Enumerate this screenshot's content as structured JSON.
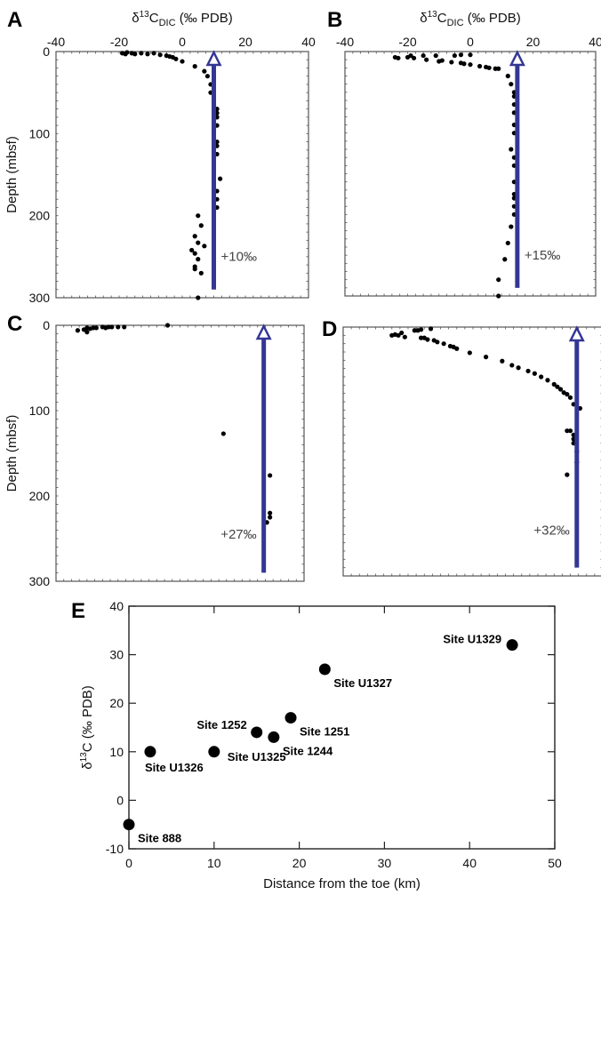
{
  "colors": {
    "arrow": "#343694",
    "points": "#000000",
    "frame": "#555555",
    "frame_e": "#222222"
  },
  "chart_data": [
    {
      "id": "A",
      "type": "scatter",
      "panel_label": "A",
      "title": "δ13C_DIC (‰ PDB)",
      "title_parts": {
        "prefix": "δ",
        "sup": "13",
        "main": "C",
        "sub": "DIC",
        "suffix": " (‰ PDB)"
      },
      "xlabel": "δ13C_DIC (‰ PDB)",
      "ylabel": "Depth (mbsf)",
      "xlim": [
        -40,
        40
      ],
      "ylim": [
        0,
        300
      ],
      "y_inverted": true,
      "x_ticks": [
        -40,
        -20,
        0,
        20,
        40
      ],
      "y_ticks": [
        0,
        100,
        200,
        300
      ],
      "arrow": {
        "x": 10,
        "depth_from": 290,
        "depth_to": 0,
        "label": "+10‰"
      },
      "points": [
        [
          -19,
          2
        ],
        [
          -18,
          3
        ],
        [
          -17.5,
          1
        ],
        [
          -16,
          2
        ],
        [
          -15,
          3
        ],
        [
          -13,
          2
        ],
        [
          -11,
          3
        ],
        [
          -9,
          2
        ],
        [
          -7,
          4
        ],
        [
          -5,
          5
        ],
        [
          -4,
          6
        ],
        [
          -3,
          7
        ],
        [
          -2,
          9
        ],
        [
          0,
          12
        ],
        [
          4,
          18
        ],
        [
          7,
          24
        ],
        [
          8,
          30
        ],
        [
          9,
          40
        ],
        [
          9,
          50
        ],
        [
          10,
          60
        ],
        [
          10,
          65
        ],
        [
          11,
          70
        ],
        [
          11,
          75
        ],
        [
          11,
          80
        ],
        [
          10,
          85
        ],
        [
          11,
          90
        ],
        [
          10,
          95
        ],
        [
          10,
          105
        ],
        [
          11,
          110
        ],
        [
          11,
          115
        ],
        [
          10,
          120
        ],
        [
          11,
          125
        ],
        [
          10,
          130
        ],
        [
          12,
          155
        ],
        [
          11,
          170
        ],
        [
          11,
          180
        ],
        [
          11,
          190
        ],
        [
          10,
          195
        ],
        [
          5,
          200
        ],
        [
          6,
          212
        ],
        [
          4,
          225
        ],
        [
          5,
          233
        ],
        [
          7,
          237
        ],
        [
          3,
          242
        ],
        [
          4,
          246
        ],
        [
          5,
          253
        ],
        [
          4,
          262
        ],
        [
          4,
          265
        ],
        [
          6,
          270
        ],
        [
          5,
          300
        ]
      ]
    },
    {
      "id": "B",
      "type": "scatter",
      "panel_label": "B",
      "title": "δ13C_DIC (‰ PDB)",
      "title_parts": {
        "prefix": "δ",
        "sup": "13",
        "main": "C",
        "sub": "DIC",
        "suffix": " (‰ PDB)"
      },
      "xlabel": "δ13C_DIC (‰ PDB)",
      "ylabel": "",
      "xlim": [
        -40,
        40
      ],
      "ylim": [
        0,
        300
      ],
      "y_inverted": true,
      "x_ticks": [
        -40,
        -20,
        0,
        20,
        40
      ],
      "y_ticks": [],
      "arrow": {
        "x": 15,
        "depth_from": 290,
        "depth_to": 0,
        "label": "+15‰"
      },
      "points": [
        [
          -24,
          7
        ],
        [
          -23,
          8
        ],
        [
          -20,
          7
        ],
        [
          -19,
          5
        ],
        [
          -18,
          8
        ],
        [
          -15,
          5
        ],
        [
          -14,
          10
        ],
        [
          -11,
          5
        ],
        [
          -10,
          12
        ],
        [
          -9,
          11
        ],
        [
          -6,
          13
        ],
        [
          -5,
          5
        ],
        [
          -3,
          4
        ],
        [
          -3,
          14
        ],
        [
          -2,
          15
        ],
        [
          0,
          4
        ],
        [
          0,
          16
        ],
        [
          3,
          18
        ],
        [
          5,
          19
        ],
        [
          6,
          20
        ],
        [
          8,
          21
        ],
        [
          9,
          21
        ],
        [
          12,
          30
        ],
        [
          13,
          40
        ],
        [
          14,
          50
        ],
        [
          14,
          55
        ],
        [
          14,
          65
        ],
        [
          14,
          75
        ],
        [
          14,
          90
        ],
        [
          14,
          100
        ],
        [
          13,
          120
        ],
        [
          14,
          130
        ],
        [
          14,
          140
        ],
        [
          14,
          160
        ],
        [
          14,
          175
        ],
        [
          14,
          180
        ],
        [
          14,
          190
        ],
        [
          14,
          200
        ],
        [
          13,
          215
        ],
        [
          12,
          235
        ],
        [
          11,
          255
        ],
        [
          9,
          280
        ],
        [
          9,
          300
        ]
      ]
    },
    {
      "id": "C",
      "type": "scatter",
      "panel_label": "C",
      "title": "",
      "xlabel": "",
      "ylabel": "Depth (mbsf)",
      "xlim": [
        -40,
        40
      ],
      "ylim": [
        0,
        300
      ],
      "y_inverted": true,
      "x_ticks": [],
      "y_ticks": [
        0,
        100,
        200,
        300
      ],
      "arrow": {
        "x": 27,
        "depth_from": 290,
        "depth_to": 0,
        "label": "+27‰"
      },
      "points": [
        [
          -33,
          6
        ],
        [
          -31,
          5
        ],
        [
          -30,
          3
        ],
        [
          -30,
          8
        ],
        [
          -29,
          4
        ],
        [
          -28,
          3
        ],
        [
          -27,
          3
        ],
        [
          -25,
          2
        ],
        [
          -24,
          3
        ],
        [
          -23,
          2
        ],
        [
          -22,
          2
        ],
        [
          -20,
          2
        ],
        [
          -18,
          2
        ],
        [
          -4,
          0
        ],
        [
          14,
          127
        ],
        [
          29,
          176
        ],
        [
          29,
          220
        ],
        [
          29,
          225
        ],
        [
          28,
          231
        ]
      ]
    },
    {
      "id": "D",
      "type": "scatter",
      "panel_label": "D",
      "title": "",
      "xlabel": "",
      "ylabel": "",
      "xlim": [
        -40,
        40
      ],
      "ylim": [
        0,
        300
      ],
      "y_inverted": true,
      "x_ticks": [],
      "y_ticks": [],
      "arrow": {
        "x": 32,
        "depth_from": 290,
        "depth_to": 0,
        "label": "+32‰"
      },
      "points": [
        [
          -25,
          10
        ],
        [
          -24,
          9
        ],
        [
          -23,
          10
        ],
        [
          -22,
          7
        ],
        [
          -21,
          12
        ],
        [
          -18,
          4
        ],
        [
          -17,
          4
        ],
        [
          -16,
          3
        ],
        [
          -16,
          13
        ],
        [
          -15,
          13
        ],
        [
          -14,
          15
        ],
        [
          -13,
          2
        ],
        [
          -12,
          16
        ],
        [
          -11,
          18
        ],
        [
          -9,
          20
        ],
        [
          -7,
          23
        ],
        [
          -6,
          24
        ],
        [
          -5,
          26
        ],
        [
          -1,
          31
        ],
        [
          4,
          36
        ],
        [
          9,
          41
        ],
        [
          12,
          46
        ],
        [
          14,
          49
        ],
        [
          17,
          53
        ],
        [
          19,
          56
        ],
        [
          21,
          60
        ],
        [
          23,
          64
        ],
        [
          25,
          69
        ],
        [
          26,
          72
        ],
        [
          27,
          75
        ],
        [
          28,
          79
        ],
        [
          29,
          81
        ],
        [
          30,
          85
        ],
        [
          31,
          93
        ],
        [
          33,
          98
        ],
        [
          29,
          125
        ],
        [
          30,
          125
        ],
        [
          31,
          130
        ],
        [
          31,
          135
        ],
        [
          31,
          140
        ],
        [
          32,
          150
        ],
        [
          32,
          163
        ],
        [
          29,
          178
        ]
      ]
    },
    {
      "id": "E",
      "type": "scatter",
      "panel_label": "E",
      "title": "",
      "xlabel": "Distance from the toe (km)",
      "ylabel": "δ13C (‰ PDB)",
      "ylabel_parts": {
        "prefix": "δ",
        "sup": "13",
        "main": "C (‰ PDB)"
      },
      "xlim": [
        0,
        50
      ],
      "ylim": [
        -10,
        40
      ],
      "x_ticks": [
        0,
        10,
        20,
        30,
        40,
        50
      ],
      "y_ticks": [
        -10,
        0,
        10,
        20,
        30,
        40
      ],
      "points": [
        {
          "site": "Site 888",
          "x": 0,
          "y": -5,
          "label_pos": "below-right"
        },
        {
          "site": "Site U1326",
          "x": 2.5,
          "y": 10,
          "label_pos": "below"
        },
        {
          "site": "Site U1325",
          "x": 10,
          "y": 10,
          "label_pos": "right"
        },
        {
          "site": "Site 1252",
          "x": 15,
          "y": 14,
          "label_pos": "upper-left"
        },
        {
          "site": "Site 1244",
          "x": 17,
          "y": 13,
          "label_pos": "below-right"
        },
        {
          "site": "Site 1251",
          "x": 19,
          "y": 17,
          "label_pos": "below-right"
        },
        {
          "site": "Site U1327",
          "x": 23,
          "y": 27,
          "label_pos": "below-right"
        },
        {
          "site": "Site U1329",
          "x": 45,
          "y": 32,
          "label_pos": "left"
        }
      ]
    }
  ]
}
